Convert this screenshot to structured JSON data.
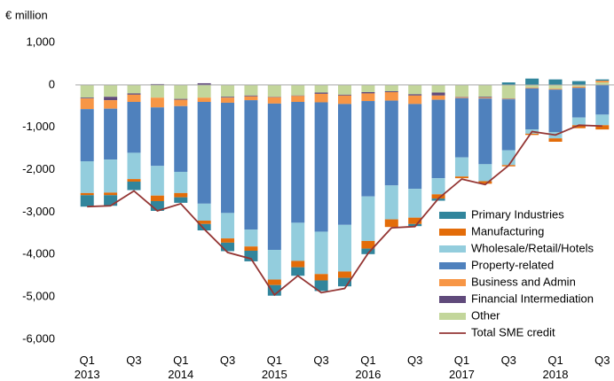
{
  "chart_data": {
    "type": "stacked_bar_line",
    "y_unit_label": "€ million",
    "categories": [
      "Q1 2013",
      null,
      "Q3",
      null,
      "Q1 2014",
      null,
      "Q3",
      null,
      "Q1 2015",
      null,
      "Q3",
      null,
      "Q1 2016",
      null,
      "Q3",
      null,
      "Q1 2017",
      null,
      "Q3",
      null,
      "Q1 2018",
      null,
      "Q3"
    ],
    "series": [
      {
        "name": "Primary Industries",
        "color": "#31859c",
        "values": [
          -270,
          -250,
          -200,
          -230,
          -130,
          -150,
          -200,
          -250,
          -250,
          -200,
          -250,
          -200,
          -130,
          0,
          -50,
          -50,
          0,
          0,
          60,
          150,
          130,
          90,
          30
        ]
      },
      {
        "name": "Manufacturing",
        "color": "#e36c09",
        "values": [
          -50,
          -60,
          -60,
          -130,
          -100,
          -80,
          -100,
          -100,
          -130,
          -150,
          -150,
          -150,
          -180,
          -180,
          -150,
          -100,
          -40,
          -60,
          -30,
          -30,
          -80,
          -70,
          -100
        ]
      },
      {
        "name": "Wholesale/Retail/Hotels",
        "color": "#93cddd",
        "values": [
          -750,
          -780,
          -620,
          -700,
          -500,
          -400,
          -600,
          -400,
          -700,
          -900,
          -1000,
          -1100,
          -1050,
          -800,
          -680,
          -380,
          -450,
          -400,
          -350,
          -100,
          -150,
          -180,
          -250
        ]
      },
      {
        "name": "Property-related",
        "color": "#4f81bd",
        "values": [
          -1230,
          -1200,
          -1200,
          -1380,
          -1550,
          -2400,
          -2600,
          -3050,
          -3450,
          -2850,
          -3050,
          -2850,
          -2250,
          -2000,
          -2000,
          -1850,
          -1400,
          -1550,
          -1200,
          -970,
          -1000,
          -700,
          -700
        ]
      },
      {
        "name": "Business and Admin",
        "color": "#f79646",
        "values": [
          -250,
          -200,
          -170,
          -230,
          -150,
          -100,
          -120,
          -90,
          -150,
          -140,
          -200,
          -200,
          -180,
          -200,
          -200,
          -100,
          -20,
          -20,
          -10,
          -20,
          -20,
          -30,
          40
        ]
      },
      {
        "name": "Financial Intermediation",
        "color": "#604a7b",
        "values": [
          -20,
          -80,
          -30,
          20,
          -20,
          40,
          -20,
          -20,
          -10,
          -10,
          -30,
          -20,
          -30,
          -20,
          -30,
          -70,
          -10,
          -20,
          -10,
          0,
          0,
          0,
          0
        ]
      },
      {
        "name": "Other",
        "color": "#c3d69b",
        "values": [
          -300,
          -280,
          -200,
          -300,
          -330,
          -300,
          -280,
          -250,
          -280,
          -250,
          -180,
          -230,
          -170,
          -150,
          -220,
          -180,
          -280,
          -280,
          -320,
          -60,
          -90,
          -40,
          60
        ]
      }
    ],
    "line": {
      "name": "Total SME credit",
      "color": "#943634",
      "values": [
        -2870,
        -2850,
        -2500,
        -2970,
        -2800,
        -3400,
        -3950,
        -4100,
        -4950,
        -4500,
        -4900,
        -4800,
        -3970,
        -3370,
        -3340,
        -2680,
        -2220,
        -2350,
        -1900,
        -1100,
        -1180,
        -950,
        -970
      ]
    },
    "ylim": [
      -6000,
      1000
    ],
    "yticks": [
      {
        "value": -6000,
        "label": "-6,000"
      },
      {
        "value": -5000,
        "label": "-5,000"
      },
      {
        "value": -4000,
        "label": "-4,000"
      },
      {
        "value": -3000,
        "label": "-3,000"
      },
      {
        "value": -2000,
        "label": "-2,000"
      },
      {
        "value": -1000,
        "label": "-1,000"
      },
      0,
      {
        "value": 1000,
        "label": "1,000"
      }
    ],
    "grid": false
  }
}
